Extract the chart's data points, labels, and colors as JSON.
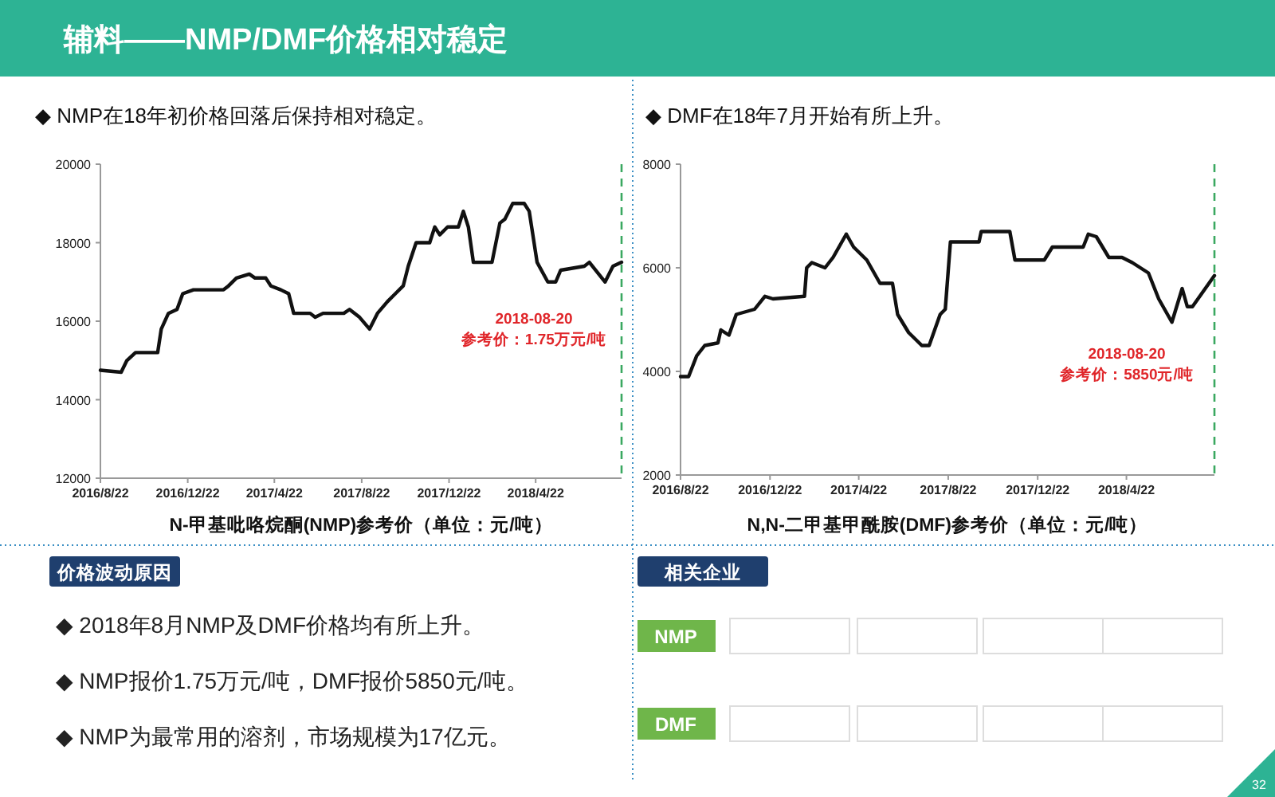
{
  "chart_data": [
    {
      "type": "other",
      "title": "辅料——NMP/DMF价格相对稳定",
      "annotations": [
        "32"
      ]
    },
    {
      "type": "line",
      "subtitle": "◆ NMP在18年初价格回落后保持相对稳定。",
      "xlabel": "N-甲基吡咯烷酮(NMP)参考价（单位：元/吨）",
      "color": "#111111",
      "x": [
        "2016-08-22",
        "2016-09-20",
        "2016-09-28",
        "2016-10-10",
        "2016-11-10",
        "2016-11-15",
        "2016-11-25",
        "2016-12-07",
        "2016-12-15",
        "2016-12-30",
        "2017-02-10",
        "2017-02-17",
        "2017-02-28",
        "2017-03-18",
        "2017-03-26",
        "2017-04-10",
        "2017-04-17",
        "2017-05-01",
        "2017-05-12",
        "2017-05-19",
        "2017-06-11",
        "2017-06-18",
        "2017-06-29",
        "2017-07-28",
        "2017-08-05",
        "2017-08-19",
        "2017-09-02",
        "2017-09-13",
        "2017-09-27",
        "2017-10-08",
        "2017-10-19",
        "2017-10-26",
        "2017-11-06",
        "2017-11-25",
        "2017-12-02",
        "2017-12-09",
        "2017-12-20",
        "2018-01-04",
        "2018-01-11",
        "2018-01-18",
        "2018-01-25",
        "2018-02-20",
        "2018-03-03",
        "2018-03-10",
        "2018-03-21",
        "2018-04-06",
        "2018-04-13",
        "2018-04-24",
        "2018-05-09",
        "2018-05-20",
        "2018-05-27",
        "2018-06-29",
        "2018-07-06",
        "2018-07-28",
        "2018-08-08",
        "2018-08-20"
      ],
      "values": [
        14750,
        14700,
        15000,
        15200,
        15200,
        15800,
        16200,
        16300,
        16700,
        16800,
        16800,
        16900,
        17100,
        17200,
        17100,
        17100,
        16900,
        16800,
        16700,
        16200,
        16200,
        16100,
        16200,
        16200,
        16300,
        16100,
        15800,
        16200,
        16500,
        16700,
        16900,
        17400,
        18000,
        18000,
        18400,
        18200,
        18400,
        18400,
        18800,
        18400,
        17500,
        17500,
        18500,
        18600,
        19000,
        19000,
        18800,
        17500,
        17000,
        17000,
        17300,
        17400,
        17500,
        17000,
        17400,
        17500
      ],
      "xlim": [
        "2016-08-22",
        "2018-08-20"
      ],
      "xticks": [
        {
          "value": "2016-08-22",
          "label": "2016/8/22"
        },
        {
          "value": "2016-12-22",
          "label": "2016/12/22"
        },
        {
          "value": "2017-04-22",
          "label": "2017/4/22"
        },
        {
          "value": "2017-08-22",
          "label": "2017/8/22"
        },
        {
          "value": "2017-12-22",
          "label": "2017/12/22"
        },
        {
          "value": "2018-04-22",
          "label": "2018/4/22"
        }
      ],
      "ylim": [
        12000,
        20000
      ],
      "yticks": [
        12000,
        14000,
        16000,
        18000,
        20000
      ],
      "ref_lines": [
        {
          "axis": "x",
          "value": "2018-08-20",
          "color": "#3aa860",
          "line_style": "dashed"
        }
      ],
      "annotations": [
        "2018-08-20\n参考价：1.75万元/吨"
      ]
    },
    {
      "type": "line",
      "subtitle": "◆ DMF在18年7月开始有所上升。",
      "xlabel": "N,N-二甲基甲酰胺(DMF)参考价（单位：元/吨）",
      "color": "#111111",
      "x": [
        "2016-08-22",
        "2016-09-02",
        "2016-09-13",
        "2016-09-24",
        "2016-10-12",
        "2016-10-16",
        "2016-10-27",
        "2016-11-06",
        "2016-12-01",
        "2016-12-15",
        "2016-12-26",
        "2017-02-07",
        "2017-02-10",
        "2017-02-17",
        "2017-03-07",
        "2017-03-18",
        "2017-04-05",
        "2017-04-15",
        "2017-05-03",
        "2017-05-21",
        "2017-06-07",
        "2017-06-14",
        "2017-06-29",
        "2017-07-17",
        "2017-07-27",
        "2017-08-11",
        "2017-08-18",
        "2017-08-25",
        "2017-10-03",
        "2017-10-06",
        "2017-11-14",
        "2017-11-21",
        "2017-12-31",
        "2018-01-11",
        "2018-02-22",
        "2018-03-01",
        "2018-03-12",
        "2018-03-29",
        "2018-04-16",
        "2018-04-30",
        "2018-05-22",
        "2018-06-05",
        "2018-06-23",
        "2018-07-07",
        "2018-07-14",
        "2018-07-21",
        "2018-08-20"
      ],
      "values": [
        3900,
        3900,
        4300,
        4500,
        4550,
        4800,
        4700,
        5100,
        5200,
        5450,
        5400,
        5450,
        6000,
        6100,
        6000,
        6200,
        6650,
        6400,
        6150,
        5700,
        5700,
        5100,
        4750,
        4500,
        4500,
        5100,
        5200,
        6500,
        6500,
        6700,
        6700,
        6150,
        6150,
        6400,
        6400,
        6650,
        6600,
        6200,
        6200,
        6100,
        5900,
        5400,
        4950,
        5600,
        5250,
        5250,
        5850
      ],
      "xlim": [
        "2016-08-22",
        "2018-08-20"
      ],
      "xticks": [
        {
          "value": "2016-08-22",
          "label": "2016/8/22"
        },
        {
          "value": "2016-12-22",
          "label": "2016/12/22"
        },
        {
          "value": "2017-04-22",
          "label": "2017/4/22"
        },
        {
          "value": "2017-08-22",
          "label": "2017/8/22"
        },
        {
          "value": "2017-12-22",
          "label": "2017/12/22"
        },
        {
          "value": "2018-04-22",
          "label": "2018/4/22"
        }
      ],
      "ylim": [
        2000,
        8000
      ],
      "yticks": [
        2000,
        4000,
        6000,
        8000
      ],
      "ref_lines": [
        {
          "axis": "x",
          "value": "2018-08-20",
          "color": "#3aa860",
          "line_style": "dashed"
        }
      ],
      "annotations": [
        "2018-08-20\n参考价：5850元/吨"
      ]
    },
    {
      "type": "other",
      "title": "价格波动原因",
      "annotations": [
        "◆ 2018年8月NMP及DMF价格均有所上升。",
        "◆ NMP报价1.75万元/吨，DMF报价5850元/吨。",
        "◆ NMP为最常用的溶剂，市场规模为17亿元。"
      ]
    },
    {
      "type": "other",
      "title": "相关企业",
      "categories": [
        "NMP",
        "DMF"
      ]
    }
  ]
}
